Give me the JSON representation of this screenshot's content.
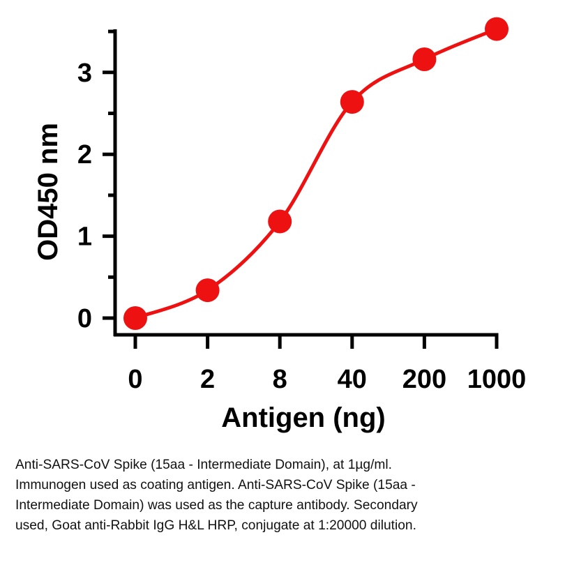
{
  "chart_data": {
    "type": "line",
    "title": "",
    "xlabel": "Antigen (ng)",
    "ylabel": "OD450 nm",
    "x_categories": [
      "0",
      "2",
      "8",
      "40",
      "200",
      "1000"
    ],
    "ylim": [
      -0.2,
      3.55
    ],
    "yticks": [
      0,
      1,
      2,
      3
    ],
    "series": [
      {
        "values": [
          0.0,
          0.34,
          1.18,
          2.64,
          3.16,
          3.53
        ],
        "color": "#ee1111"
      }
    ],
    "curve": "sigmoidal-fit",
    "grid": false,
    "legend": "none"
  },
  "caption": {
    "lines": [
      "Anti-SARS-CoV Spike (15aa - Intermediate Domain), at 1µg/ml.",
      "Immunogen used as coating antigen. Anti-SARS-CoV Spike (15aa -",
      "Intermediate Domain) was used as the capture antibody. Secondary",
      "used, Goat anti-Rabbit IgG H&L HRP, conjugate at 1:20000 dilution."
    ]
  }
}
